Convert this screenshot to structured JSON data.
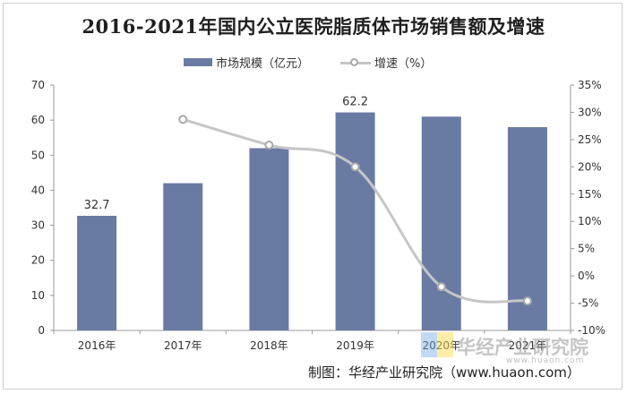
{
  "chart_data": {
    "type": "bar+line",
    "title": "2016-2021年国内公立医院脂质体市场销售额及增速",
    "categories": [
      "2016年",
      "2017年",
      "2018年",
      "2019年",
      "2020年",
      "2021年"
    ],
    "series": [
      {
        "name": "市场规模（亿元）",
        "type": "bar",
        "axis": "left",
        "values": [
          32.7,
          42,
          52,
          62.2,
          61,
          58
        ],
        "labels": [
          "32.7",
          "",
          "",
          "62.2",
          "",
          ""
        ]
      },
      {
        "name": "增速（%）",
        "type": "line",
        "axis": "right",
        "values": [
          null,
          28.7,
          24,
          20,
          -2,
          -4.6
        ]
      }
    ],
    "y_left": {
      "min": 0,
      "max": 70,
      "step": 10
    },
    "y_left_ticks": [
      "0",
      "10",
      "20",
      "30",
      "40",
      "50",
      "60",
      "70"
    ],
    "y_right": {
      "min": -10,
      "max": 35,
      "step": 5
    },
    "y_right_ticks": [
      "-10%",
      "-5%",
      "0%",
      "5%",
      "10%",
      "15%",
      "20%",
      "25%",
      "30%",
      "35%"
    ],
    "legend": "top-center",
    "grid": false,
    "colors": {
      "bar": "#6a7ba3",
      "line": "#c6c6c6",
      "marker": "#a9a9a9"
    }
  },
  "source": "制图：华经产业研究院（www.huaon.com）",
  "watermark": {
    "text": "华经产业研究院",
    "url": "www.huaon.com"
  }
}
